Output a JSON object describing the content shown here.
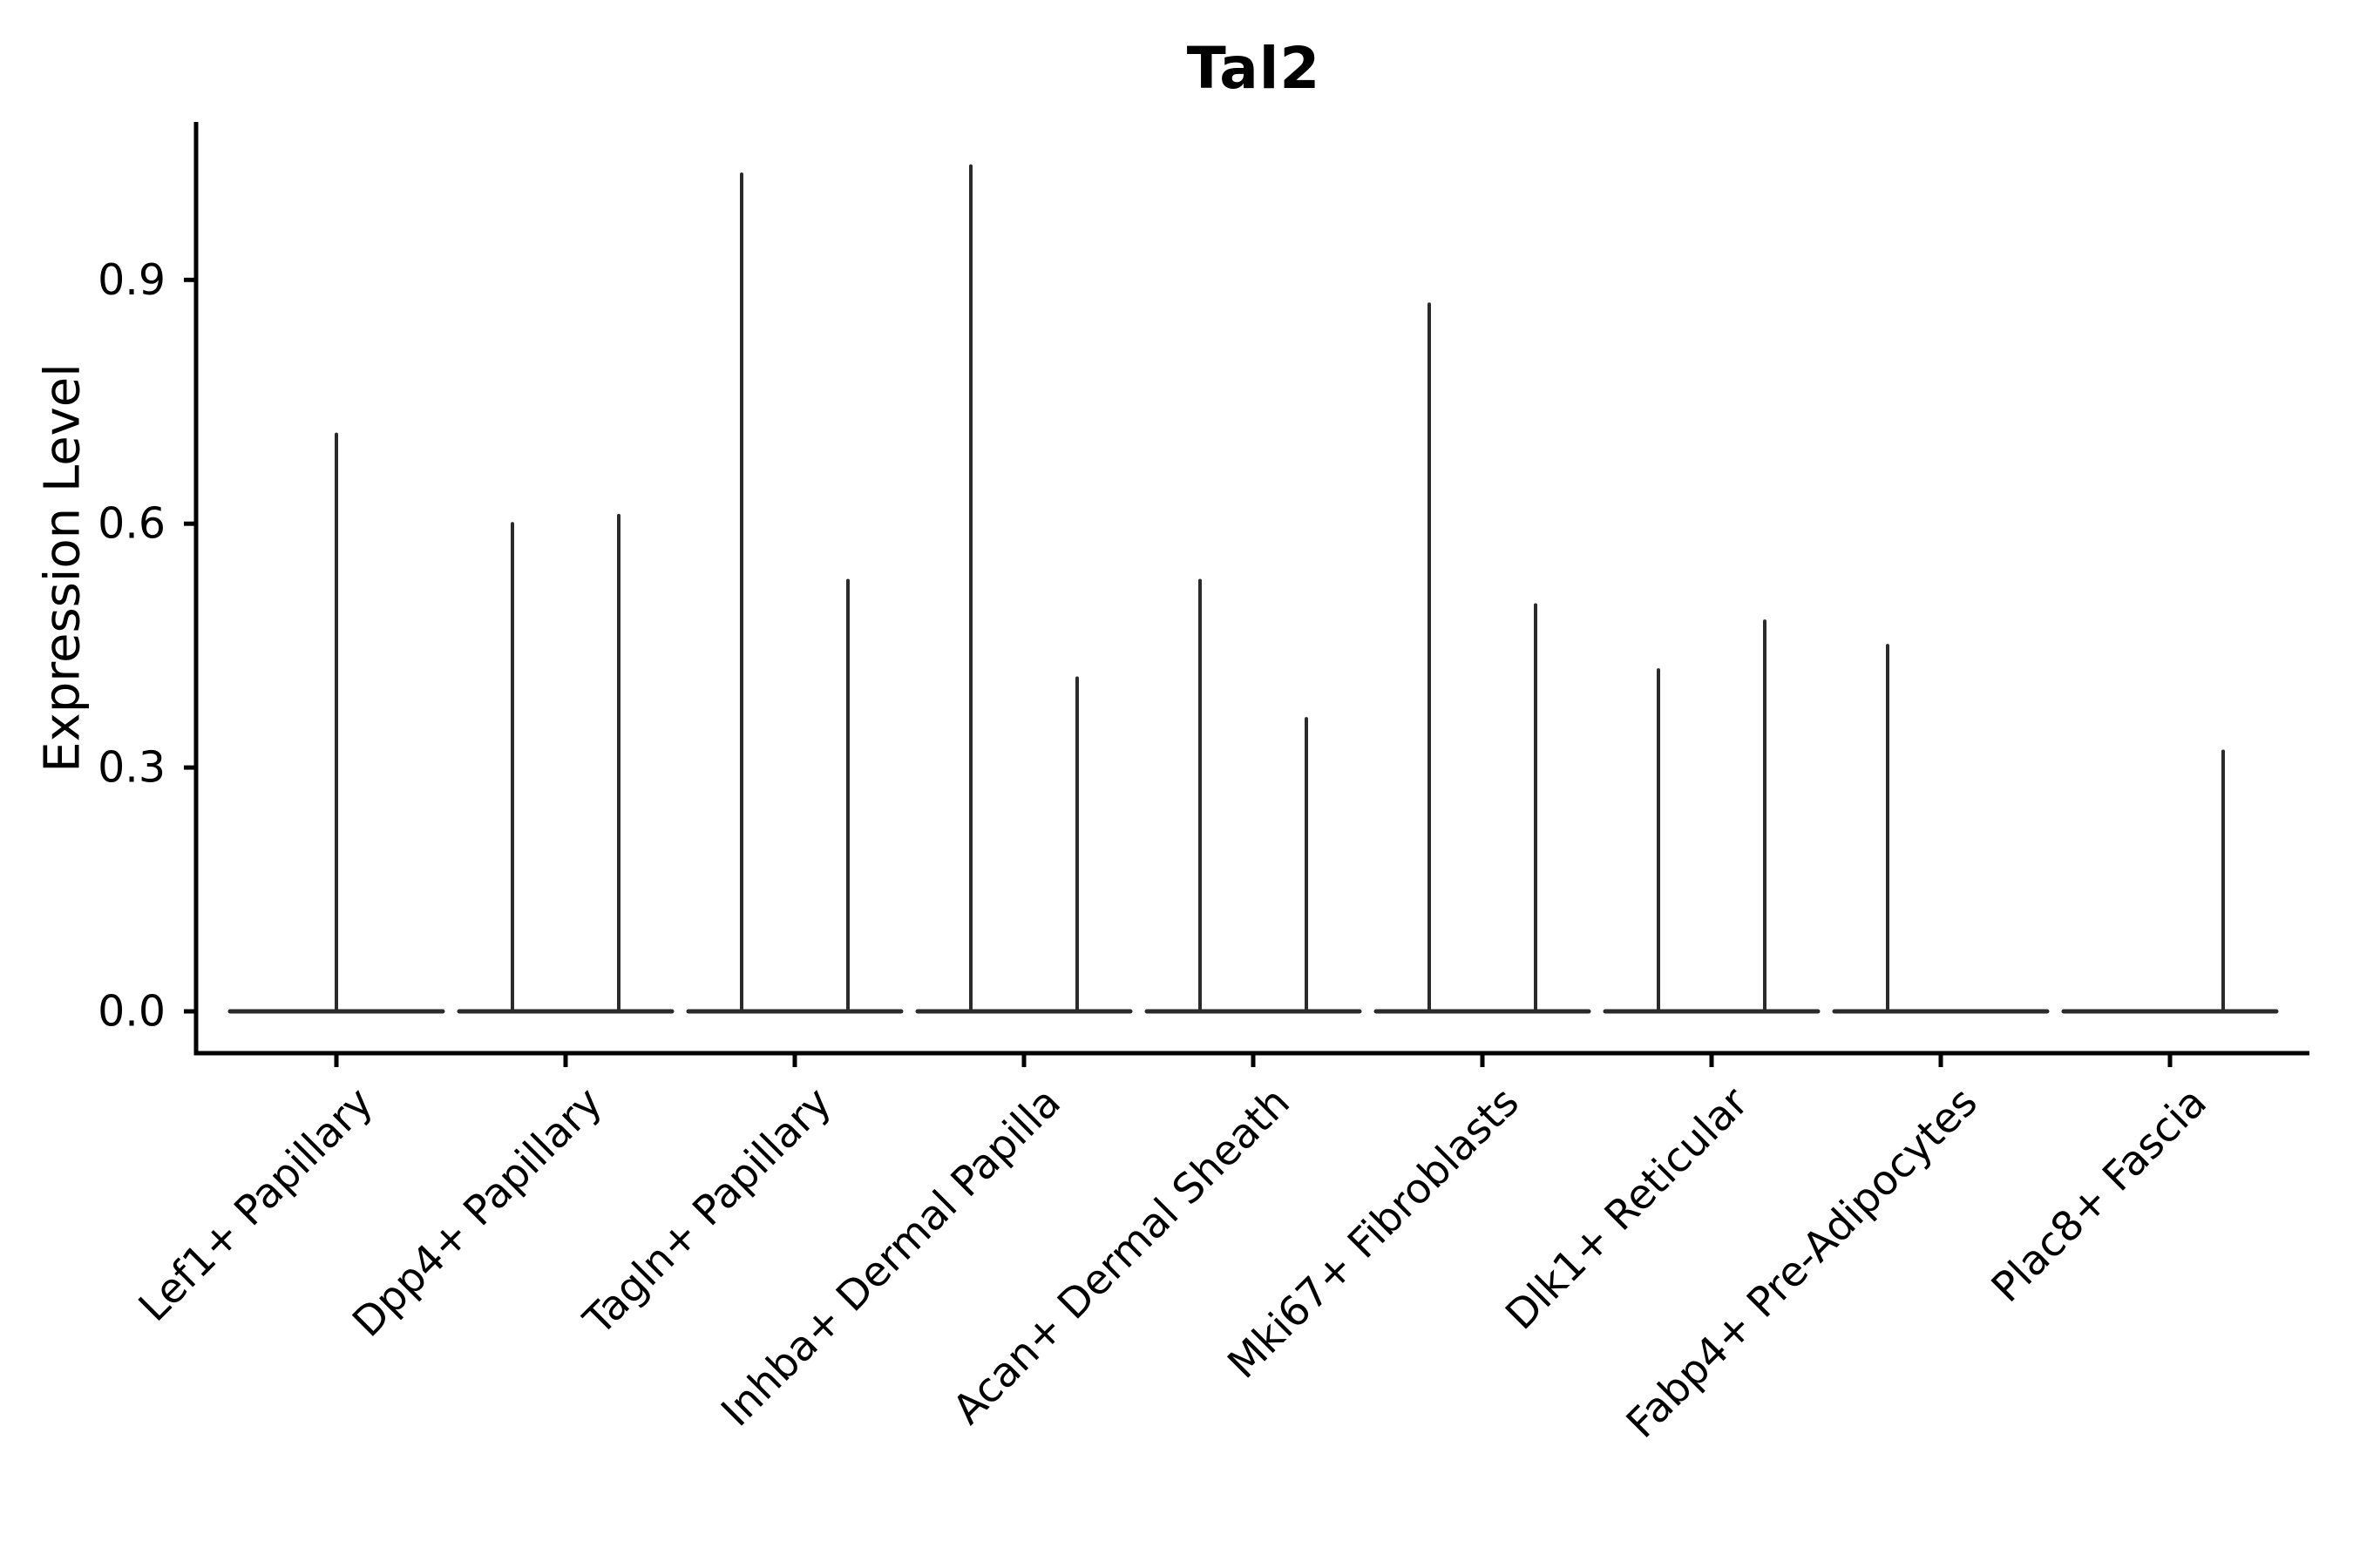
{
  "chart_data": {
    "type": "violin",
    "title": "Tal2",
    "ylabel": "Expression Level",
    "xlabel": "",
    "ytick_labels": [
      "0.0",
      "0.3",
      "0.6",
      "0.9"
    ],
    "yticks": [
      0.0,
      0.3,
      0.6,
      0.9
    ],
    "ylim": [
      -0.05,
      1.09
    ],
    "grid": false,
    "legend_position": "none",
    "background_color": "#ffffff",
    "categories": [
      "Lef1+ Papillary",
      "Dpp4+ Papillary",
      "Tagln+ Papillary",
      "Inhba+ Dermal Papilla",
      "Acan+ Dermal Sheath",
      "Mki67+ Fibroblasts",
      "Dlk1+ Reticular",
      "Fabp4+ Pre-Adipocytes",
      "Plac8+ Fascia"
    ],
    "description": "Violin plot of Tal2 expression; each category shows a flat zero-density violin body at 0.0 with thin vertical spikes reaching the maximum expression of sparse expressing cells",
    "violins": [
      {
        "category": "Lef1+ Papillary",
        "spikes": [
          {
            "pos": "center",
            "max": 0.71
          }
        ]
      },
      {
        "category": "Dpp4+ Papillary",
        "spikes": [
          {
            "pos": "left",
            "max": 0.6
          },
          {
            "pos": "right",
            "max": 0.61
          }
        ]
      },
      {
        "category": "Tagln+ Papillary",
        "spikes": [
          {
            "pos": "left",
            "max": 1.03
          },
          {
            "pos": "right",
            "max": 0.53
          }
        ]
      },
      {
        "category": "Inhba+ Dermal Papilla",
        "spikes": [
          {
            "pos": "left",
            "max": 1.04
          },
          {
            "pos": "right",
            "max": 0.41
          }
        ]
      },
      {
        "category": "Acan+ Dermal Sheath",
        "spikes": [
          {
            "pos": "left",
            "max": 0.53
          },
          {
            "pos": "right",
            "max": 0.36
          }
        ]
      },
      {
        "category": "Mki67+ Fibroblasts",
        "spikes": [
          {
            "pos": "left",
            "max": 0.87
          },
          {
            "pos": "right",
            "max": 0.5
          }
        ]
      },
      {
        "category": "Dlk1+ Reticular",
        "spikes": [
          {
            "pos": "left",
            "max": 0.42
          },
          {
            "pos": "right",
            "max": 0.48
          }
        ]
      },
      {
        "category": "Fabp4+ Pre-Adipocytes",
        "spikes": [
          {
            "pos": "left",
            "max": 0.45
          }
        ]
      },
      {
        "category": "Plac8+ Fascia",
        "spikes": [
          {
            "pos": "right",
            "max": 0.32
          }
        ]
      }
    ],
    "colors": {
      "violin_line": "#2b2b2b",
      "axis": "#000000",
      "text": "#000000",
      "background": "#ffffff"
    }
  }
}
